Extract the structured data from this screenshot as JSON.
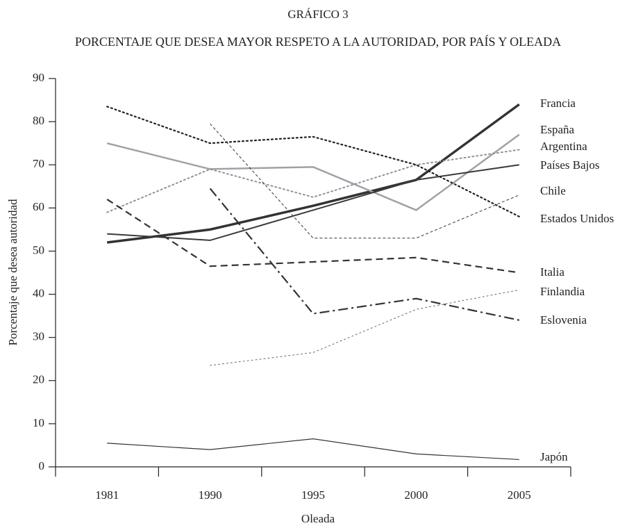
{
  "chart_data": {
    "type": "line",
    "title": "GRÁFICO 3",
    "subtitle": "PORCENTAJE QUE DESEA MAYOR RESPETO A LA AUTORIDAD, POR PAÍS Y OLEADA",
    "x_label": "Oleada",
    "y_label": "Porcentaje que desea autoridad",
    "categories": [
      "1981",
      "1990",
      "1995",
      "2000",
      "2005"
    ],
    "ylim": [
      0,
      90
    ],
    "yticks": [
      0,
      10,
      20,
      30,
      40,
      50,
      60,
      70,
      80,
      90
    ],
    "series": [
      {
        "name": "Francia",
        "color": "#333333",
        "style": "solid",
        "width": 3.5,
        "values": [
          52,
          55,
          60.5,
          66.5,
          84
        ]
      },
      {
        "name": "España",
        "color": "#a0a0a8",
        "style": "solid",
        "width": 2.5,
        "values": [
          75,
          69,
          69.5,
          59.5,
          77
        ]
      },
      {
        "name": "Argentina",
        "color": "#909098",
        "style": "dotted",
        "width": 2,
        "values": [
          59,
          69,
          62.5,
          70,
          73.5
        ]
      },
      {
        "name": "Países Bajos",
        "color": "#3a3a3a",
        "style": "solid",
        "width": 2,
        "values": [
          54,
          52.5,
          59.5,
          66.5,
          70
        ]
      },
      {
        "name": "Chile",
        "color": "#333333",
        "style": "dashed-thin",
        "width": 1,
        "values": [
          null,
          79.5,
          53,
          53,
          63
        ]
      },
      {
        "name": "Estados Unidos",
        "color": "#222222",
        "style": "dotted",
        "width": 2.2,
        "values": [
          83.5,
          75,
          76.5,
          70,
          58
        ]
      },
      {
        "name": "Italia",
        "color": "#333333",
        "style": "dashed",
        "width": 2.2,
        "values": [
          62,
          46.5,
          47.5,
          48.5,
          45
        ]
      },
      {
        "name": "Finlandia",
        "color": "#666666",
        "style": "dotted",
        "width": 1,
        "values": [
          null,
          23.5,
          26.5,
          36.5,
          41
        ]
      },
      {
        "name": "Eslovenia",
        "color": "#333333",
        "style": "dashdot",
        "width": 2.2,
        "values": [
          null,
          64.5,
          35.5,
          39,
          34
        ]
      },
      {
        "name": "Japón",
        "color": "#333333",
        "style": "solid",
        "width": 1.2,
        "values": [
          5.5,
          4,
          6.5,
          3,
          1.7
        ]
      }
    ]
  }
}
